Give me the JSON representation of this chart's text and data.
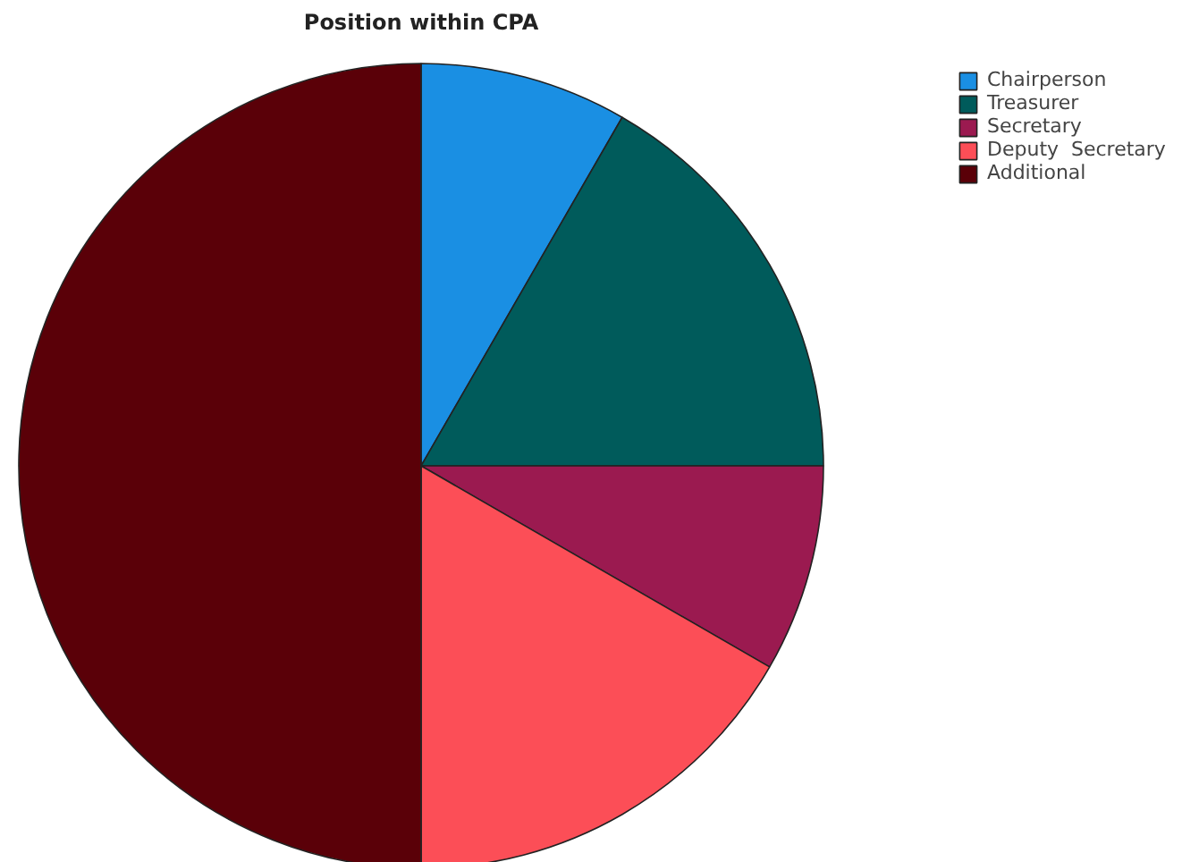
{
  "chart_data": {
    "type": "pie",
    "title": "Position within CPA",
    "categories": [
      "Chairperson",
      "Treasurer",
      "Secretary",
      "Deputy  Secretary",
      "Additional"
    ],
    "values": [
      8.33,
      16.67,
      8.33,
      16.67,
      50
    ],
    "colors": [
      "#1a8fe3",
      "#005b5b",
      "#9b1a50",
      "#fc4e57",
      "#5a0008"
    ],
    "legend": "top right"
  }
}
